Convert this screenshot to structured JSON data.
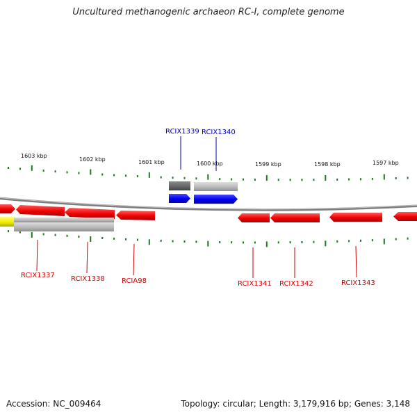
{
  "title": "Uncultured methanogenic archaeon RC-I, complete genome",
  "footer": {
    "accession": "Accession: NC_009464",
    "summary": "Topology: circular; Length: 3,179,916 bp; Genes: 3,148"
  },
  "colors": {
    "backbone": "#8a8a8a",
    "tick": "#1a7a1a",
    "gene_label_red": "#cc0000",
    "gene_label_blue": "#0000aa",
    "gene_red": "#ee0000",
    "gene_blue": "#0000ee",
    "gene_gray": "#b8b8b8",
    "gene_darkgray": "#6a6a6a",
    "gene_yellow": "#eeee00"
  },
  "scale_labels": [
    "1603 kbp",
    "1602 kbp",
    "1601 kbp",
    "1600 kbp",
    "1599 kbp",
    "1598 kbp",
    "1597 kbp"
  ],
  "gene_labels": [
    "RCIX1339",
    "RCIX1340",
    "RCIX1337",
    "RCIX1338",
    "RCIA98",
    "RCIX1341",
    "RCIX1342",
    "RCIX1343"
  ]
}
